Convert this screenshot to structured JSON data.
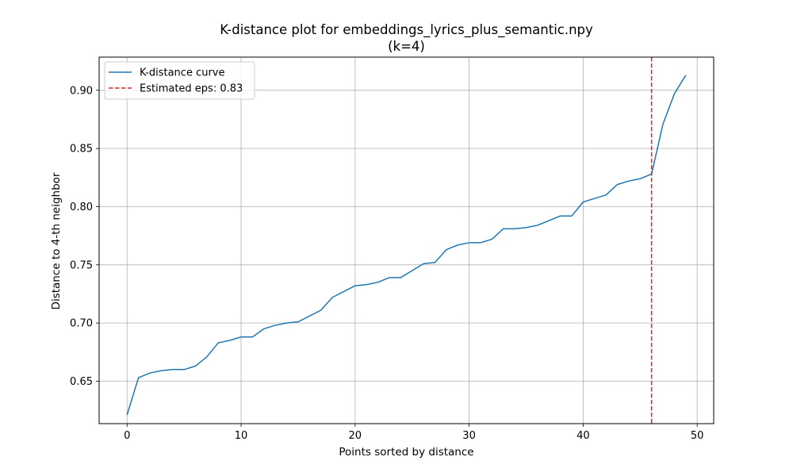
{
  "chart_data": {
    "type": "line",
    "title_line1": "K-distance plot for embeddings_lyrics_plus_semantic.npy",
    "title_line2": "(k=4)",
    "xlabel": "Points sorted by distance",
    "ylabel": "Distance to 4-th neighbor",
    "xlim": [
      -2.45,
      51.45
    ],
    "ylim": [
      0.6135,
      0.9285
    ],
    "xticks": [
      0,
      10,
      20,
      30,
      40,
      50
    ],
    "xtick_labels": [
      "0",
      "10",
      "20",
      "30",
      "40",
      "50"
    ],
    "yticks": [
      0.65,
      0.7,
      0.75,
      0.8,
      0.85,
      0.9
    ],
    "ytick_labels": [
      "0.65",
      "0.70",
      "0.75",
      "0.80",
      "0.85",
      "0.90"
    ],
    "grid": true,
    "legend_position": "top-left",
    "series": [
      {
        "name": "K-distance curve",
        "color": "#1f77b4",
        "x": [
          0,
          1,
          2,
          3,
          4,
          5,
          6,
          7,
          8,
          9,
          10,
          11,
          12,
          13,
          14,
          15,
          16,
          17,
          18,
          19,
          20,
          21,
          22,
          23,
          24,
          25,
          26,
          27,
          28,
          29,
          30,
          31,
          32,
          33,
          34,
          35,
          36,
          37,
          38,
          39,
          40,
          41,
          42,
          43,
          44,
          45,
          46,
          47,
          48,
          49
        ],
        "y": [
          0.621,
          0.653,
          0.657,
          0.659,
          0.66,
          0.66,
          0.663,
          0.671,
          0.683,
          0.685,
          0.688,
          0.688,
          0.695,
          0.698,
          0.7,
          0.701,
          0.706,
          0.711,
          0.722,
          0.727,
          0.732,
          0.733,
          0.735,
          0.739,
          0.739,
          0.745,
          0.751,
          0.752,
          0.763,
          0.767,
          0.769,
          0.769,
          0.772,
          0.781,
          0.781,
          0.782,
          0.784,
          0.788,
          0.792,
          0.792,
          0.804,
          0.807,
          0.81,
          0.819,
          0.822,
          0.824,
          0.828,
          0.871,
          0.897,
          0.913
        ]
      }
    ],
    "vline": {
      "name": "Estimated eps: 0.83",
      "x": 46,
      "color": "#d62728",
      "style": "dashed"
    }
  }
}
